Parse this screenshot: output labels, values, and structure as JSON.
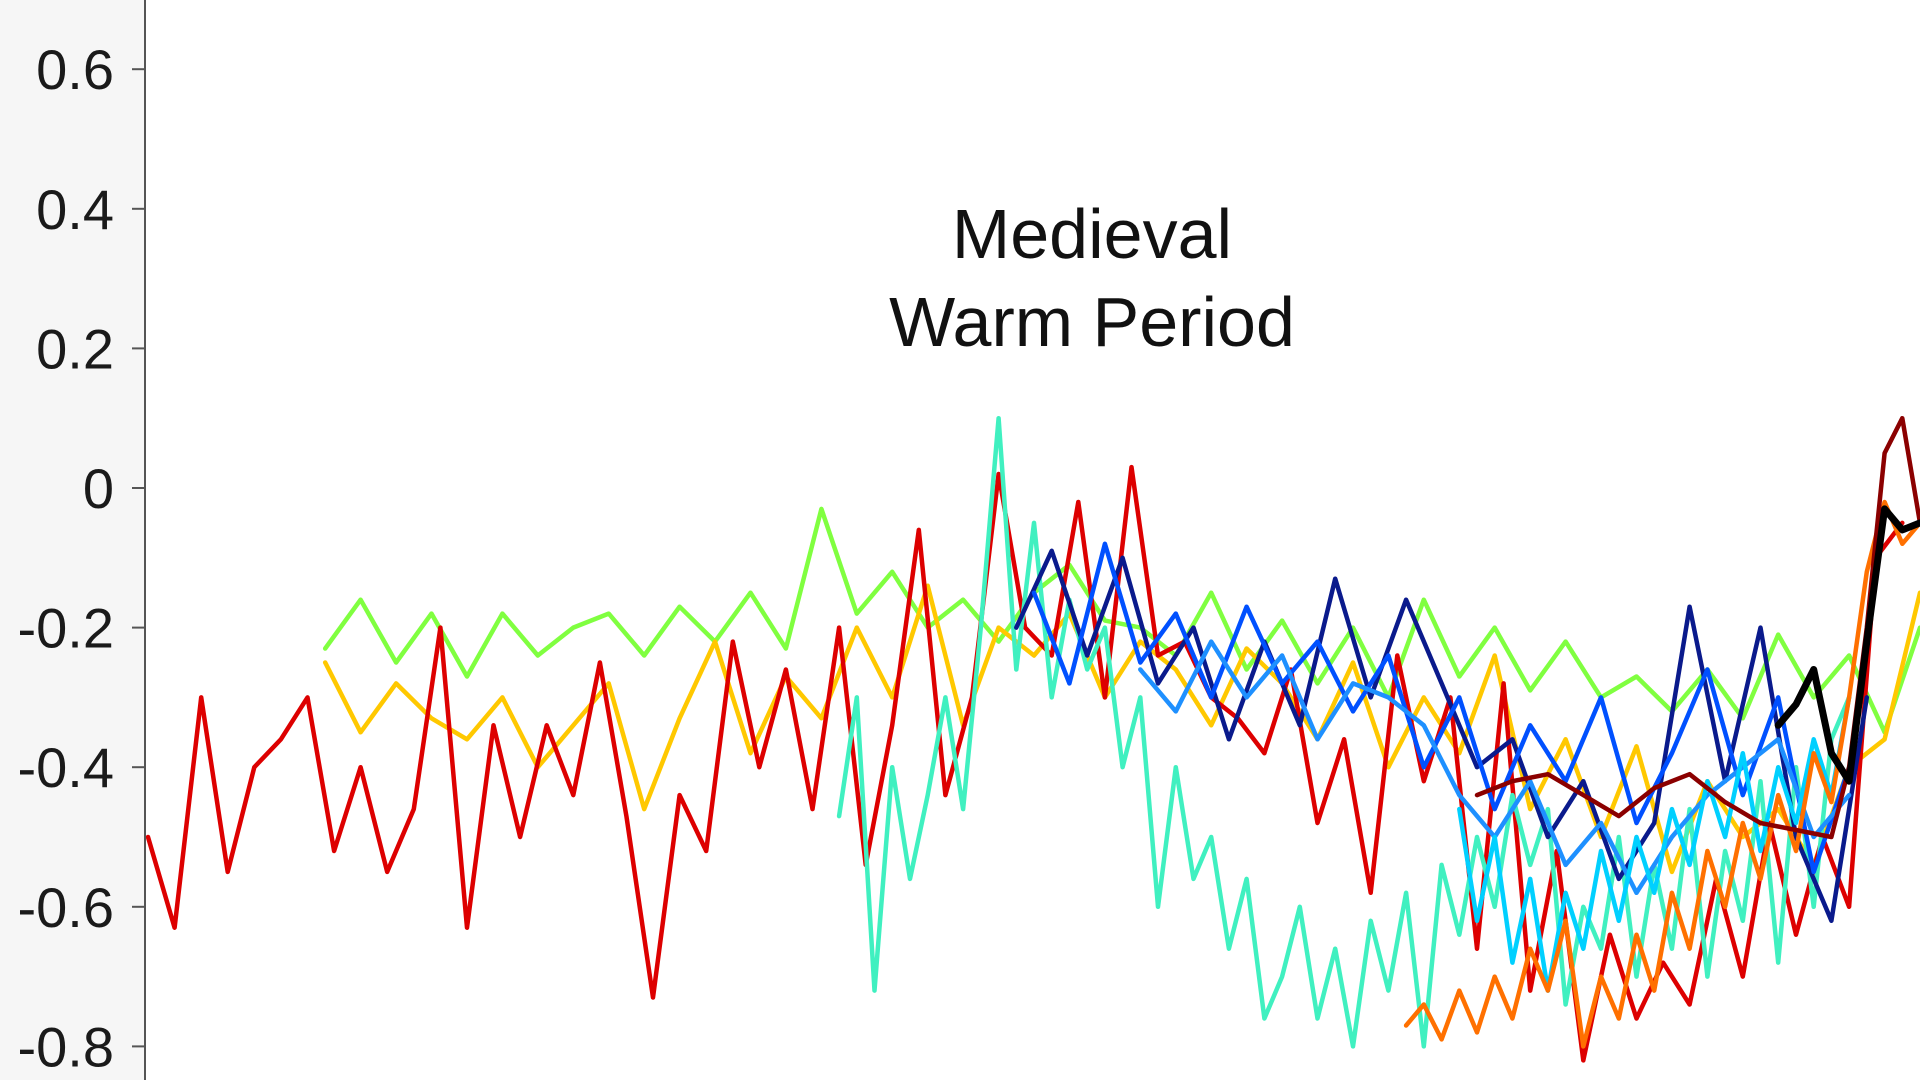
{
  "chart_data": {
    "type": "line",
    "title": "",
    "xlabel": "",
    "ylabel": "",
    "ylim": [
      -0.85,
      0.7
    ],
    "xlim": [
      0,
      100
    ],
    "y_ticks": [
      0.6,
      0.4,
      0.2,
      0,
      -0.2,
      -0.4,
      -0.6,
      -0.8
    ],
    "y_tick_labels": [
      "0.6",
      "0.4",
      "0.2",
      "0",
      "-0.2",
      "-0.4",
      "-0.6",
      "-0.8"
    ],
    "grid": false,
    "annotation": {
      "line1": "Medieval",
      "line2": "Warm Period",
      "x": 56,
      "y": 0.29
    },
    "series": [
      {
        "color": "#80ff40",
        "x": [
          10,
          12,
          14,
          16,
          18,
          20,
          22,
          24,
          26,
          28,
          30,
          32,
          34,
          36,
          38,
          40,
          42,
          44,
          46,
          48,
          50,
          52,
          54,
          56,
          58,
          60,
          62,
          64,
          66,
          68,
          70,
          72,
          74,
          76,
          78,
          80,
          82,
          84,
          86,
          88,
          90,
          92,
          94,
          96,
          98,
          100
        ],
        "values": [
          -0.23,
          -0.16,
          -0.25,
          -0.18,
          -0.27,
          -0.18,
          -0.24,
          -0.2,
          -0.18,
          -0.24,
          -0.17,
          -0.22,
          -0.15,
          -0.23,
          -0.03,
          -0.18,
          -0.12,
          -0.2,
          -0.16,
          -0.22,
          -0.15,
          -0.11,
          -0.19,
          -0.2,
          -0.24,
          -0.15,
          -0.26,
          -0.19,
          -0.28,
          -0.2,
          -0.3,
          -0.16,
          -0.27,
          -0.2,
          -0.29,
          -0.22,
          -0.3,
          -0.27,
          -0.32,
          -0.26,
          -0.33,
          -0.21,
          -0.3,
          -0.24,
          -0.35,
          -0.2
        ]
      },
      {
        "color": "#ffc800",
        "x": [
          10,
          12,
          14,
          16,
          18,
          20,
          22,
          24,
          26,
          28,
          30,
          32,
          34,
          36,
          38,
          40,
          42,
          44,
          46,
          48,
          50,
          52,
          54,
          56,
          58,
          60,
          62,
          64,
          66,
          68,
          70,
          72,
          74,
          76,
          78,
          80,
          82,
          84,
          86,
          88,
          90,
          92,
          94,
          96,
          98,
          100
        ],
        "values": [
          -0.25,
          -0.35,
          -0.28,
          -0.33,
          -0.36,
          -0.3,
          -0.4,
          -0.34,
          -0.28,
          -0.46,
          -0.33,
          -0.22,
          -0.38,
          -0.27,
          -0.33,
          -0.2,
          -0.3,
          -0.14,
          -0.34,
          -0.2,
          -0.24,
          -0.18,
          -0.3,
          -0.22,
          -0.26,
          -0.34,
          -0.23,
          -0.28,
          -0.36,
          -0.25,
          -0.4,
          -0.3,
          -0.38,
          -0.24,
          -0.46,
          -0.36,
          -0.5,
          -0.37,
          -0.55,
          -0.42,
          -0.5,
          -0.46,
          -0.54,
          -0.4,
          -0.36,
          -0.15
        ]
      },
      {
        "color": "#dd0000",
        "x": [
          0,
          1.5,
          3,
          4.5,
          6,
          7.5,
          9,
          10.5,
          12,
          13.5,
          15,
          16.5,
          18,
          19.5,
          21,
          22.5,
          24,
          25.5,
          27,
          28.5,
          30,
          31.5,
          33,
          34.5,
          36,
          37.5,
          39,
          40.5,
          42,
          43.5,
          45,
          46.5,
          48,
          49.5,
          51,
          52.5,
          54,
          55.5,
          57,
          58.5,
          60,
          61.5,
          63,
          64.5,
          66,
          67.5,
          69,
          70.5,
          72,
          73.5,
          75,
          76.5,
          78,
          79.5,
          81,
          82.5,
          84,
          85.5,
          87,
          88.5,
          90,
          91.5,
          93,
          94.5,
          96,
          97.5,
          99
        ],
        "values": [
          -0.5,
          -0.63,
          -0.3,
          -0.55,
          -0.4,
          -0.36,
          -0.3,
          -0.52,
          -0.4,
          -0.55,
          -0.46,
          -0.2,
          -0.63,
          -0.34,
          -0.5,
          -0.34,
          -0.44,
          -0.25,
          -0.47,
          -0.73,
          -0.44,
          -0.52,
          -0.22,
          -0.4,
          -0.26,
          -0.46,
          -0.2,
          -0.54,
          -0.34,
          -0.06,
          -0.44,
          -0.3,
          0.02,
          -0.2,
          -0.24,
          -0.02,
          -0.3,
          0.03,
          -0.24,
          -0.22,
          -0.3,
          -0.33,
          -0.38,
          -0.26,
          -0.48,
          -0.36,
          -0.58,
          -0.24,
          -0.42,
          -0.3,
          -0.66,
          -0.28,
          -0.72,
          -0.52,
          -0.82,
          -0.64,
          -0.76,
          -0.68,
          -0.74,
          -0.56,
          -0.7,
          -0.48,
          -0.64,
          -0.5,
          -0.6,
          -0.1,
          -0.05
        ]
      },
      {
        "color": "#40f0c0",
        "x": [
          39,
          40,
          41,
          42,
          43,
          44,
          45,
          46,
          47,
          48,
          49,
          50,
          51,
          52,
          53,
          54,
          55,
          56,
          57,
          58,
          59,
          60,
          61,
          62,
          63,
          64,
          65,
          66,
          67,
          68,
          69,
          70,
          71,
          72,
          73,
          74,
          75,
          76,
          77,
          78,
          79,
          80,
          81,
          82,
          83,
          84,
          85,
          86,
          87,
          88,
          89,
          90,
          91,
          92,
          93,
          94,
          95,
          96
        ],
        "values": [
          -0.47,
          -0.3,
          -0.72,
          -0.4,
          -0.56,
          -0.44,
          -0.3,
          -0.46,
          -0.2,
          0.1,
          -0.26,
          -0.05,
          -0.3,
          -0.16,
          -0.26,
          -0.2,
          -0.4,
          -0.3,
          -0.6,
          -0.4,
          -0.56,
          -0.5,
          -0.66,
          -0.56,
          -0.76,
          -0.7,
          -0.6,
          -0.76,
          -0.66,
          -0.8,
          -0.62,
          -0.72,
          -0.58,
          -0.8,
          -0.54,
          -0.64,
          -0.5,
          -0.6,
          -0.44,
          -0.54,
          -0.46,
          -0.74,
          -0.6,
          -0.66,
          -0.5,
          -0.7,
          -0.54,
          -0.66,
          -0.46,
          -0.7,
          -0.52,
          -0.62,
          -0.42,
          -0.68,
          -0.4,
          -0.6,
          -0.36,
          -0.3
        ]
      },
      {
        "color": "#0a1a8c",
        "x": [
          49,
          51,
          53,
          55,
          57,
          59,
          61,
          63,
          65,
          67,
          69,
          71,
          73,
          75,
          77,
          79,
          81,
          83,
          85,
          87,
          89,
          91,
          93,
          95,
          97
        ],
        "values": [
          -0.2,
          -0.09,
          -0.24,
          -0.1,
          -0.28,
          -0.2,
          -0.36,
          -0.22,
          -0.34,
          -0.13,
          -0.3,
          -0.16,
          -0.28,
          -0.4,
          -0.36,
          -0.5,
          -0.42,
          -0.56,
          -0.48,
          -0.17,
          -0.42,
          -0.2,
          -0.5,
          -0.62,
          -0.3
        ]
      },
      {
        "color": "#0050ff",
        "x": [
          50,
          52,
          54,
          56,
          58,
          60,
          62,
          64,
          66,
          68,
          70,
          72,
          74,
          76,
          78,
          80,
          82,
          84,
          86,
          88,
          90,
          92,
          94,
          96
        ],
        "values": [
          -0.15,
          -0.28,
          -0.08,
          -0.25,
          -0.18,
          -0.3,
          -0.17,
          -0.28,
          -0.22,
          -0.32,
          -0.24,
          -0.4,
          -0.3,
          -0.46,
          -0.34,
          -0.42,
          -0.3,
          -0.48,
          -0.38,
          -0.26,
          -0.44,
          -0.3,
          -0.55,
          -0.4
        ]
      },
      {
        "color": "#1e90ff",
        "x": [
          56,
          58,
          60,
          62,
          64,
          66,
          68,
          70,
          72,
          74,
          76,
          78,
          80,
          82,
          84,
          86,
          88,
          90,
          92,
          94,
          96
        ],
        "values": [
          -0.26,
          -0.32,
          -0.22,
          -0.3,
          -0.24,
          -0.36,
          -0.28,
          -0.3,
          -0.34,
          -0.44,
          -0.5,
          -0.42,
          -0.54,
          -0.48,
          -0.58,
          -0.5,
          -0.44,
          -0.4,
          -0.36,
          -0.5,
          -0.44
        ]
      },
      {
        "color": "#00d0ff",
        "x": [
          74,
          75,
          76,
          77,
          78,
          79,
          80,
          81,
          82,
          83,
          84,
          85,
          86,
          87,
          88,
          89,
          90,
          91,
          92,
          93,
          94,
          95,
          96
        ],
        "values": [
          -0.46,
          -0.62,
          -0.5,
          -0.68,
          -0.56,
          -0.72,
          -0.58,
          -0.66,
          -0.52,
          -0.62,
          -0.5,
          -0.58,
          -0.46,
          -0.54,
          -0.42,
          -0.5,
          -0.38,
          -0.52,
          -0.4,
          -0.48,
          -0.36,
          -0.44,
          -0.3
        ]
      },
      {
        "color": "#ff7000",
        "x": [
          71,
          72,
          73,
          74,
          75,
          76,
          77,
          78,
          79,
          80,
          81,
          82,
          83,
          84,
          85,
          86,
          87,
          88,
          89,
          90,
          91,
          92,
          93,
          94,
          95,
          96,
          97,
          98,
          99,
          100
        ],
        "values": [
          -0.77,
          -0.74,
          -0.79,
          -0.72,
          -0.78,
          -0.7,
          -0.76,
          -0.66,
          -0.72,
          -0.62,
          -0.8,
          -0.7,
          -0.76,
          -0.64,
          -0.72,
          -0.58,
          -0.66,
          -0.52,
          -0.6,
          -0.48,
          -0.56,
          -0.44,
          -0.52,
          -0.38,
          -0.45,
          -0.3,
          -0.12,
          -0.02,
          -0.08,
          -0.05
        ]
      },
      {
        "color": "#8b0000",
        "x": [
          75,
          77,
          79,
          81,
          83,
          85,
          87,
          89,
          91,
          93,
          95,
          96,
          97,
          98,
          99,
          100
        ],
        "values": [
          -0.44,
          -0.42,
          -0.41,
          -0.44,
          -0.47,
          -0.43,
          -0.41,
          -0.45,
          -0.48,
          -0.49,
          -0.5,
          -0.4,
          -0.2,
          0.05,
          0.1,
          -0.05
        ]
      },
      {
        "color": "#000000",
        "x": [
          92,
          93,
          94,
          95,
          96,
          97,
          98,
          99,
          100
        ],
        "values": [
          -0.34,
          -0.31,
          -0.26,
          -0.38,
          -0.42,
          -0.22,
          -0.03,
          -0.06,
          -0.05
        ]
      }
    ]
  }
}
